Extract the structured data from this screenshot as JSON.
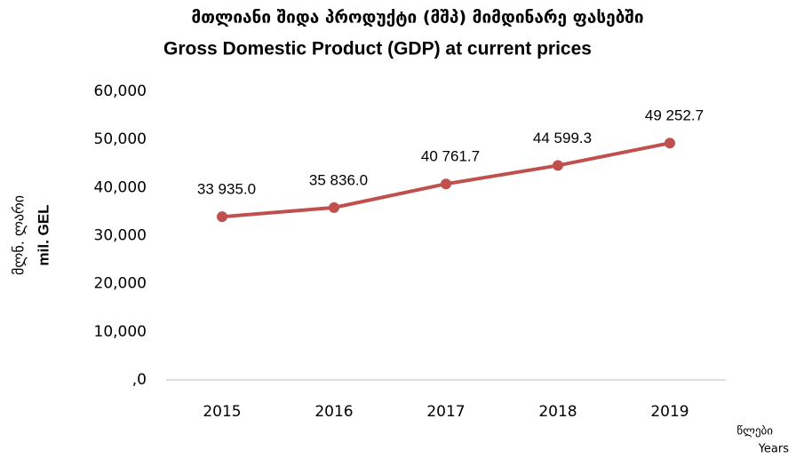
{
  "chart_data": {
    "type": "line",
    "title": "მთლიანი შიდა პროდუქტი (მშპ) მიმდინარე ფასებში",
    "subtitle": "Gross Domestic Product (GDP) at current prices",
    "ylabel": [
      "მლნ. ლარი",
      "mil. GEL"
    ],
    "xlabel": [
      "წლები",
      "Years"
    ],
    "categories": [
      "2015",
      "2016",
      "2017",
      "2018",
      "2019"
    ],
    "series": [
      {
        "name": "GDP",
        "color": "#c0504d",
        "values": [
          33935.0,
          35836.0,
          40761.7,
          44599.3,
          49252.7
        ],
        "value_labels": [
          "33 935.0",
          "35 836.0",
          "40 761.7",
          "44 599.3",
          "49 252.7"
        ]
      }
    ],
    "ylim": [
      0,
      60000
    ],
    "yticks": [
      {
        "value": 0,
        "label": ",0"
      },
      {
        "value": 10000,
        "label": "10,000"
      },
      {
        "value": 20000,
        "label": "20,000"
      },
      {
        "value": 30000,
        "label": "30,000"
      },
      {
        "value": 40000,
        "label": "40,000"
      },
      {
        "value": 50000,
        "label": "50,000"
      },
      {
        "value": 60000,
        "label": "60,000"
      }
    ],
    "grid": false
  }
}
